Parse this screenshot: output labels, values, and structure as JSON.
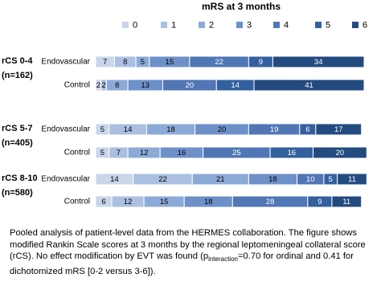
{
  "chart_data": {
    "type": "stacked-bar-horizontal",
    "title": "mRS at 3 months",
    "xlim": [
      0,
      100
    ],
    "series": [
      {
        "name": "0",
        "color": "#c9d5ea"
      },
      {
        "name": "1",
        "color": "#aabfe1"
      },
      {
        "name": "2",
        "color": "#8caad7"
      },
      {
        "name": "3",
        "color": "#6e90c9"
      },
      {
        "name": "4",
        "color": "#5076b5"
      },
      {
        "name": "5",
        "color": "#33609f"
      },
      {
        "name": "6",
        "color": "#234b80"
      }
    ],
    "groups": [
      {
        "label": "rCS 0-4",
        "sublabel": "(n=162)",
        "rows": [
          {
            "name": "Endovascular",
            "values": [
              7,
              8,
              5,
              15,
              22,
              9,
              34
            ]
          },
          {
            "name": "Control",
            "values": [
              2,
              2,
              8,
              13,
              20,
              14,
              41
            ]
          }
        ]
      },
      {
        "label": "rCS 5-7",
        "sublabel": "(n=405)",
        "rows": [
          {
            "name": "Endovascular",
            "values": [
              5,
              14,
              18,
              20,
              19,
              6,
              17
            ]
          },
          {
            "name": "Control",
            "values": [
              5,
              7,
              12,
              16,
              25,
              16,
              20
            ]
          }
        ]
      },
      {
        "label": "rCS 8-10",
        "sublabel": "(n=580)",
        "rows": [
          {
            "name": "Endovascular",
            "values": [
              14,
              22,
              21,
              18,
              10,
              5,
              11
            ]
          },
          {
            "name": "Control",
            "values": [
              6,
              12,
              15,
              18,
              28,
              9,
              11
            ]
          }
        ]
      }
    ]
  },
  "caption": {
    "before": "Pooled analysis of patient-level data from the HERMES collaboration. The figure shows modified Rankin Scale scores at 3 months by the regional leptomeningeal collateral score (rCS). No effect modification by EVT was found (p",
    "sub": "interaction",
    "after": "=0.70 for ordinal and 0.41 for dichotomized mRS [0-2 versus 3-6])."
  }
}
